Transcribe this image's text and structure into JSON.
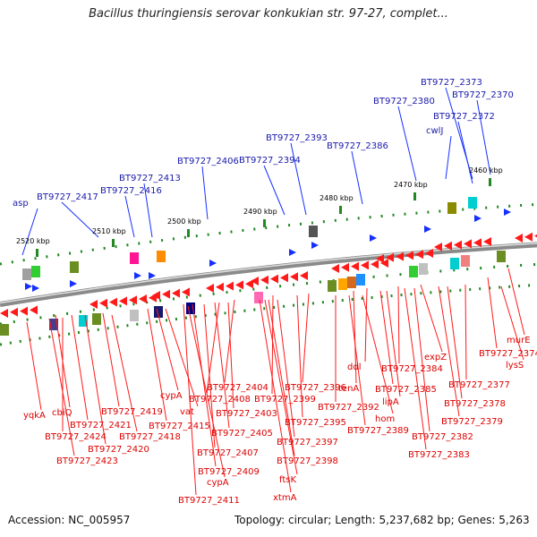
{
  "title": "Bacillus thuringiensis serovar konkukian str. 97-27, complet...",
  "accession": "Accession: NC_005957",
  "summary": "Topology: circular; Length: 5,237,682 bp; Genes: 5,263",
  "colors": {
    "backbone": "#8a8a8a",
    "forward": "#1530ff",
    "reverse": "#ff1a1a",
    "forward_label": "#1a1aaa",
    "reverse_label": "#dd0000",
    "tick": "#228822"
  },
  "kbp_labels": [
    "2460 kbp",
    "2470 kbp",
    "2480 kbp",
    "2490 kbp",
    "2500 kbp",
    "2510 kbp",
    "2520 kbp"
  ],
  "forward_labels": [
    "BT9727_2373",
    "BT9727_2370",
    "BT9727_2380",
    "BT9727_2372",
    "cwlJ",
    "BT9727_2393",
    "BT9727_2386",
    "BT9727_2406",
    "BT9727_2394",
    "BT9727_2413",
    "BT9727_2416",
    "BT9727_2417",
    "asp"
  ],
  "reverse_labels": [
    "murE",
    "BT9727_2374",
    "lysS",
    "expZ",
    "BT9727_2384",
    "ddl",
    "tenA",
    "BT9727_2377",
    "lipA",
    "BT9727_2385",
    "BT9727_2378",
    "BT9727_2396",
    "BT9727_2392",
    "hom",
    "BT9727_2379",
    "BT9727_2399",
    "BT9727_2389",
    "BT9727_2395",
    "BT9727_2382",
    "BT9727_2404",
    "BT9727_2408",
    "BT9727_2403",
    "cypA",
    "BT9727_2397",
    "BT9727_2383",
    "BT9727_2398",
    "BT9727_2405",
    "BT9727_2419",
    "cbiQ",
    "vat",
    "BT9727_2415",
    "BT9727_2407",
    "ftsK",
    "BT9727_2421",
    "yqkA",
    "BT9727_2418",
    "BT9727_2424",
    "BT9727_2409",
    "cypA",
    "xtmA",
    "BT9727_2420",
    "BT9727_2423",
    "BT9727_2411"
  ]
}
